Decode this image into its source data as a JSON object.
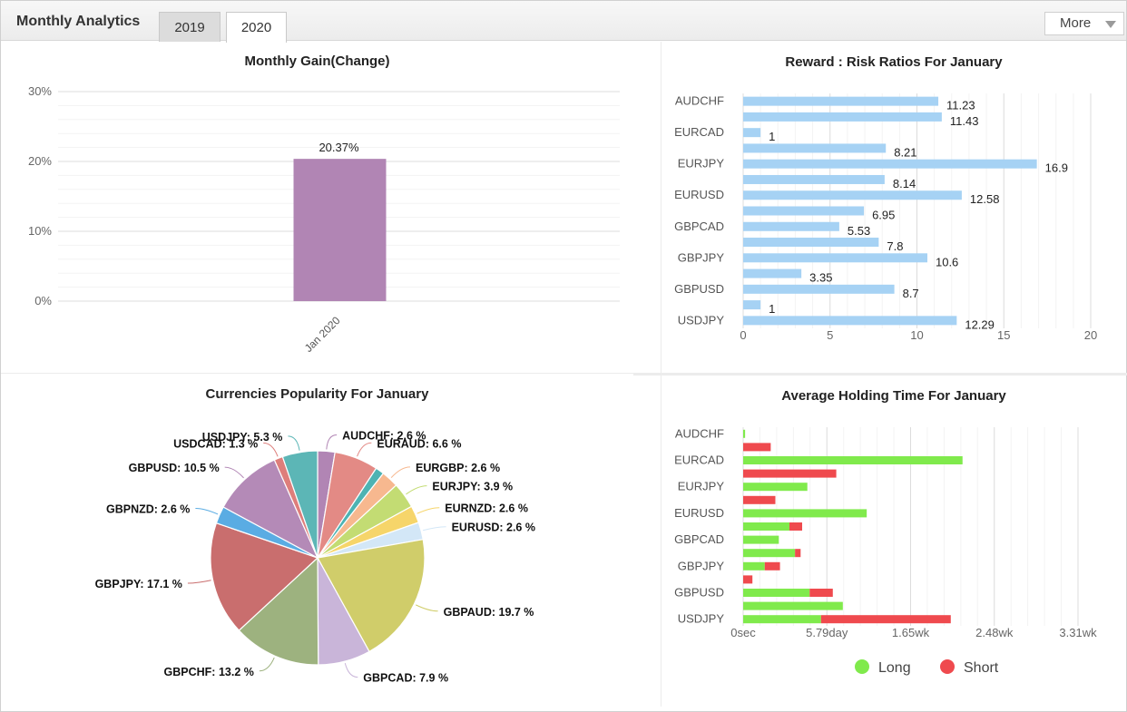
{
  "header": {
    "title": "Monthly Analytics",
    "tabs": [
      {
        "label": "2019"
      },
      {
        "label": "2020"
      }
    ],
    "more_label": "More"
  },
  "colors": {
    "gain_bar": "#b185b4",
    "rr_bar": "#a6d2f4",
    "long": "#80ea4c",
    "short": "#ef4a4e"
  },
  "chart_data": [
    {
      "type": "bar",
      "title": "Monthly Gain(Change)",
      "categories": [
        "Jan 2020"
      ],
      "values": [
        20.37
      ],
      "data_labels": [
        "20.37%"
      ],
      "ylim": [
        0,
        30
      ],
      "yticks": [
        "0%",
        "10%",
        "20%",
        "30%"
      ],
      "grid": true
    },
    {
      "type": "bar",
      "orientation": "horizontal",
      "title": "Reward : Risk Ratios For January",
      "categories": [
        "AUDCHF",
        "",
        "EURCAD",
        "",
        "EURJPY",
        "",
        "EURUSD",
        "",
        "GBPCAD",
        "",
        "GBPJPY",
        "",
        "GBPUSD",
        "",
        "USDJPY"
      ],
      "values": [
        11.23,
        11.43,
        1,
        8.21,
        16.9,
        8.14,
        12.58,
        6.95,
        5.53,
        7.8,
        10.6,
        3.35,
        8.7,
        1,
        12.29
      ],
      "data_labels": [
        "11.23",
        "11.43",
        "1",
        "8.21",
        "16.9",
        "8.14",
        "12.58",
        "6.95",
        "5.53",
        "7.8",
        "10.6",
        "3.35",
        "8.7",
        "1",
        "12.29"
      ],
      "xlim": [
        0,
        20
      ],
      "xticks": [
        "0",
        "5",
        "10",
        "15",
        "20"
      ],
      "grid": true
    },
    {
      "type": "pie",
      "title": "Currencies Popularity For January",
      "slices": [
        {
          "label": "AUDCHF: 2.6 %",
          "value": 2.6,
          "color": "#b185b4"
        },
        {
          "label": "EURAUD: 6.6 %",
          "value": 6.6,
          "color": "#e38a85"
        },
        {
          "label": "",
          "value": 1.3,
          "color": "#4db3b3"
        },
        {
          "label": "EURGBP: 2.6 %",
          "value": 2.6,
          "color": "#f7b88f"
        },
        {
          "label": "EURJPY: 3.9 %",
          "value": 3.9,
          "color": "#c3dc73"
        },
        {
          "label": "EURNZD: 2.6 %",
          "value": 2.6,
          "color": "#f6d56a"
        },
        {
          "label": "EURUSD: 2.6 %",
          "value": 2.6,
          "color": "#d3e7f7"
        },
        {
          "label": "GBPAUD: 19.7 %",
          "value": 19.7,
          "color": "#d0cd6a"
        },
        {
          "label": "GBPCAD: 7.9 %",
          "value": 7.9,
          "color": "#c9b5d9"
        },
        {
          "label": "GBPCHF: 13.2 %",
          "value": 13.2,
          "color": "#9db27f"
        },
        {
          "label": "GBPJPY: 17.1 %",
          "value": 17.1,
          "color": "#c96e6e"
        },
        {
          "label": "GBPNZD: 2.6 %",
          "value": 2.6,
          "color": "#5aace3"
        },
        {
          "label": "GBPUSD: 10.5 %",
          "value": 10.5,
          "color": "#b48ab7"
        },
        {
          "label": "USDCAD: 1.3 %",
          "value": 1.3,
          "color": "#de7e7b"
        },
        {
          "label": "USDJPY: 5.3 %",
          "value": 5.3,
          "color": "#5cb6b6"
        }
      ]
    },
    {
      "type": "bar",
      "orientation": "horizontal",
      "stacked": true,
      "title": "Average Holding Time For January",
      "categories": [
        "AUDCHF",
        "",
        "EURCAD",
        "",
        "EURJPY",
        "",
        "EURUSD",
        "",
        "GBPCAD",
        "",
        "GBPJPY",
        "",
        "GBPUSD",
        "",
        "USDJPY"
      ],
      "series": [
        {
          "name": "Long",
          "values": [
            0.1,
            0,
            11.38,
            0,
            3.33,
            0,
            6.41,
            2.4,
            1.85,
            2.69,
            1.12,
            0,
            3.45,
            5.17,
            4.04
          ]
        },
        {
          "name": "Short",
          "values": [
            0,
            1.43,
            0,
            4.83,
            0,
            1.67,
            0,
            0.66,
            0,
            0.29,
            0.79,
            0.48,
            1.2,
            0,
            6.73
          ]
        }
      ],
      "xlim": [
        0,
        17.37
      ],
      "xticks": [
        "0sec",
        "5.79day",
        "1.65wk",
        "2.48wk",
        "3.31wk"
      ],
      "grid": true,
      "legend": "bottom"
    }
  ]
}
